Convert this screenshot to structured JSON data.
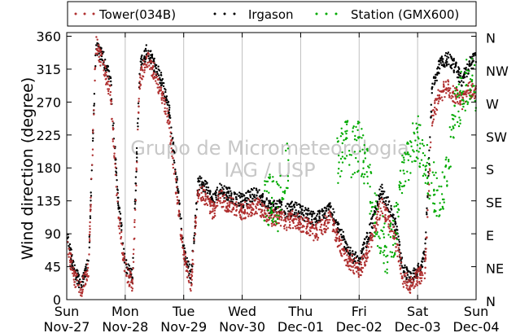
{
  "chart_data": {
    "type": "scatter",
    "ylabel": "Wind direction (degree)",
    "ylim": [
      0,
      365
    ],
    "y_ticks": [
      0,
      45,
      90,
      135,
      180,
      225,
      270,
      315,
      360
    ],
    "y_ticks_right": [
      "N",
      "NE",
      "E",
      "SE",
      "S",
      "SW",
      "W",
      "NW",
      "N"
    ],
    "x_ticks": [
      {
        "day": "Sun",
        "date": "Nov-27"
      },
      {
        "day": "Mon",
        "date": "Nov-28"
      },
      {
        "day": "Tue",
        "date": "Nov-29"
      },
      {
        "day": "Wed",
        "date": "Nov-30"
      },
      {
        "day": "Thu",
        "date": "Dec-01"
      },
      {
        "day": "Fri",
        "date": "Dec-02"
      },
      {
        "day": "Sat",
        "date": "Dec-03"
      },
      {
        "day": "Sun",
        "date": "Dec-04"
      }
    ],
    "grid": "vertical",
    "legend_position": "top",
    "watermark": [
      "Grupo de Micrometeorologia",
      "IAG / USP"
    ],
    "series": [
      {
        "name": "Tower(034B)",
        "color": "#b03030",
        "x": [
          "Nov-27 00:00",
          "Nov-27 03:00",
          "Nov-27 06:00",
          "Nov-27 09:00",
          "Nov-27 12:00",
          "Nov-27 15:00",
          "Nov-27 18:00",
          "Nov-27 21:00",
          "Nov-28 00:00",
          "Nov-28 03:00",
          "Nov-28 06:00",
          "Nov-28 09:00",
          "Nov-28 12:00",
          "Nov-28 15:00",
          "Nov-28 18:00",
          "Nov-28 21:00",
          "Nov-29 00:00",
          "Nov-29 03:00",
          "Nov-29 06:00",
          "Nov-29 09:00",
          "Nov-29 12:00",
          "Nov-29 15:00",
          "Nov-29 18:00",
          "Nov-29 21:00",
          "Nov-30 00:00",
          "Nov-30 03:00",
          "Nov-30 06:00",
          "Nov-30 09:00",
          "Nov-30 12:00",
          "Nov-30 15:00",
          "Nov-30 18:00",
          "Nov-30 21:00",
          "Dec-01 00:00",
          "Dec-01 03:00",
          "Dec-01 06:00",
          "Dec-01 09:00",
          "Dec-01 12:00",
          "Dec-01 15:00",
          "Dec-01 18:00",
          "Dec-01 21:00",
          "Dec-02 00:00",
          "Dec-02 03:00",
          "Dec-02 06:00",
          "Dec-02 09:00",
          "Dec-02 12:00",
          "Dec-02 15:00",
          "Dec-02 18:00",
          "Dec-02 21:00",
          "Dec-03 00:00",
          "Dec-03 03:00",
          "Dec-03 06:00",
          "Dec-03 09:00",
          "Dec-03 12:00",
          "Dec-03 15:00",
          "Dec-03 18:00",
          "Dec-03 21:00",
          "Dec-04 00:00"
        ],
        "y": [
          80,
          30,
          15,
          40,
          350,
          320,
          280,
          120,
          40,
          20,
          300,
          330,
          310,
          280,
          240,
          150,
          60,
          20,
          150,
          140,
          120,
          140,
          130,
          125,
          120,
          125,
          130,
          120,
          110,
          115,
          105,
          110,
          105,
          100,
          90,
          100,
          110,
          85,
          60,
          50,
          40,
          60,
          90,
          130,
          110,
          80,
          30,
          20,
          30,
          40,
          250,
          280,
          290,
          280,
          270,
          290,
          280
        ]
      },
      {
        "name": "Irgason",
        "color": "#000000",
        "x": [
          "Nov-27 00:00",
          "Nov-27 03:00",
          "Nov-27 06:00",
          "Nov-27 09:00",
          "Nov-27 12:00",
          "Nov-27 15:00",
          "Nov-27 18:00",
          "Nov-27 21:00",
          "Nov-28 00:00",
          "Nov-28 03:00",
          "Nov-28 06:00",
          "Nov-28 09:00",
          "Nov-28 12:00",
          "Nov-28 15:00",
          "Nov-28 18:00",
          "Nov-28 21:00",
          "Nov-29 00:00",
          "Nov-29 03:00",
          "Nov-29 06:00",
          "Nov-29 09:00",
          "Nov-29 12:00",
          "Nov-29 15:00",
          "Nov-29 18:00",
          "Nov-29 21:00",
          "Nov-30 00:00",
          "Nov-30 03:00",
          "Nov-30 06:00",
          "Nov-30 09:00",
          "Nov-30 12:00",
          "Nov-30 15:00",
          "Nov-30 18:00",
          "Nov-30 21:00",
          "Dec-01 00:00",
          "Dec-01 03:00",
          "Dec-01 06:00",
          "Dec-01 09:00",
          "Dec-01 12:00",
          "Dec-01 15:00",
          "Dec-01 18:00",
          "Dec-01 21:00",
          "Dec-02 00:00",
          "Dec-02 03:00",
          "Dec-02 06:00",
          "Dec-02 09:00",
          "Dec-02 12:00",
          "Dec-02 15:00",
          "Dec-02 18:00",
          "Dec-02 21:00",
          "Dec-03 00:00",
          "Dec-03 03:00",
          "Dec-03 06:00",
          "Dec-03 09:00",
          "Dec-03 12:00",
          "Dec-03 15:00",
          "Dec-03 18:00",
          "Dec-03 21:00",
          "Dec-04 00:00"
        ],
        "y": [
          90,
          40,
          20,
          50,
          345,
          330,
          300,
          140,
          50,
          30,
          320,
          340,
          320,
          300,
          260,
          170,
          70,
          30,
          160,
          155,
          135,
          150,
          145,
          140,
          135,
          140,
          145,
          135,
          125,
          130,
          120,
          125,
          120,
          115,
          110,
          115,
          125,
          100,
          80,
          60,
          50,
          80,
          110,
          150,
          130,
          100,
          40,
          30,
          40,
          60,
          290,
          320,
          330,
          320,
          300,
          320,
          330
        ]
      },
      {
        "name": "Station (GMX600)",
        "color": "#00aa00",
        "x": [
          "Nov-30 09:00",
          "Nov-30 12:00",
          "Nov-30 15:00",
          "Dec-01 15:00",
          "Dec-01 18:00",
          "Dec-01 21:00",
          "Dec-02 00:00",
          "Dec-02 03:00",
          "Dec-02 06:00",
          "Dec-02 09:00",
          "Dec-02 12:00",
          "Dec-02 15:00",
          "Dec-02 18:00",
          "Dec-02 21:00",
          "Dec-03 00:00",
          "Dec-03 03:00",
          "Dec-03 06:00",
          "Dec-03 09:00",
          "Dec-03 12:00",
          "Dec-03 15:00",
          "Dec-03 18:00",
          "Dec-03 21:00",
          "Dec-04 00:00"
        ],
        "y": [
          130,
          140,
          125,
          190,
          220,
          200,
          210,
          180,
          120,
          90,
          60,
          100,
          170,
          200,
          220,
          190,
          160,
          130,
          180,
          250,
          280,
          300,
          290
        ]
      }
    ]
  }
}
